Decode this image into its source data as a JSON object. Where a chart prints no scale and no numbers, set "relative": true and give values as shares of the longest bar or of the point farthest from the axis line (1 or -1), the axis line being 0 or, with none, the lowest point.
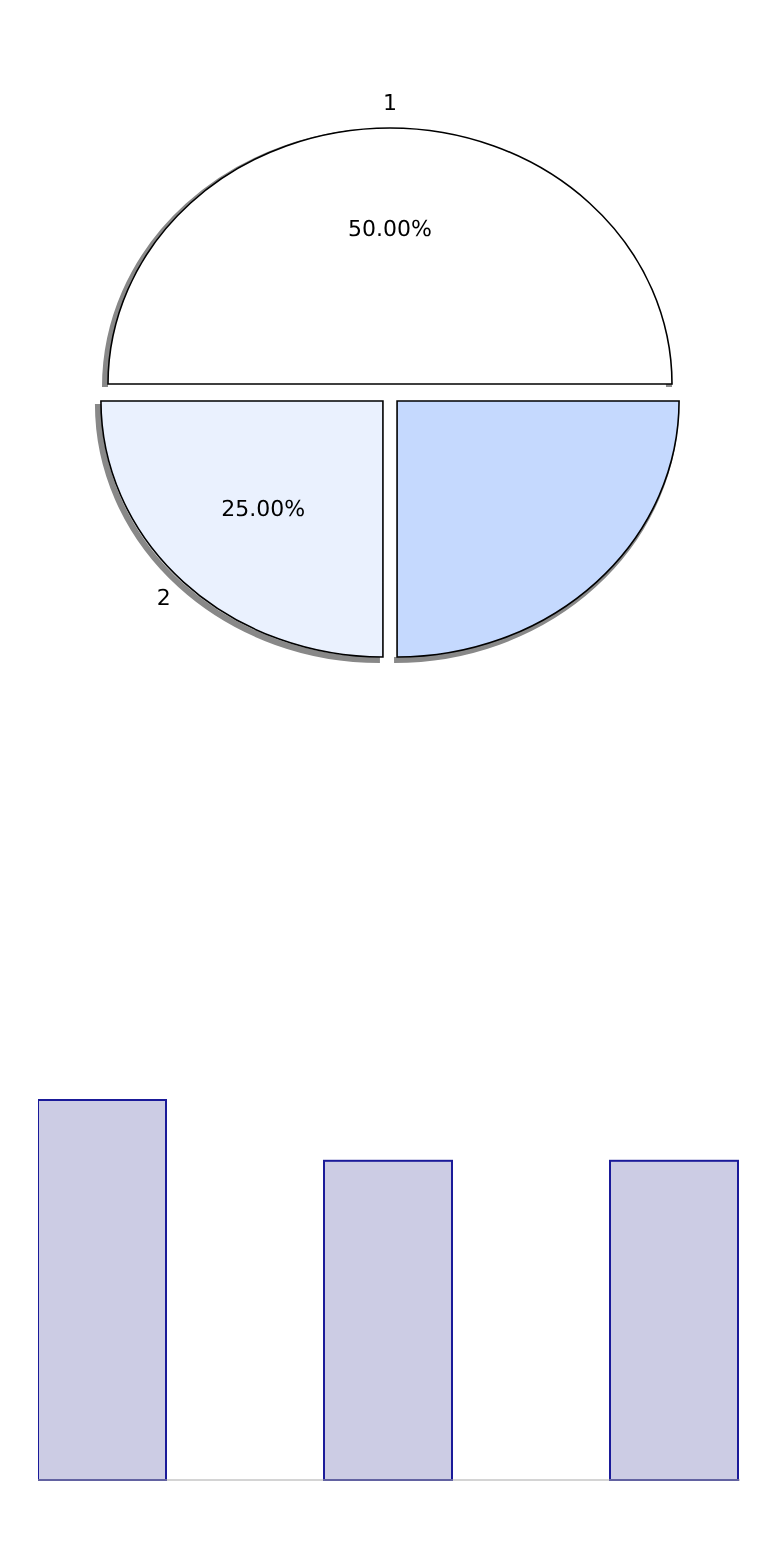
{
  "chart_data": [
    {
      "type": "pie",
      "categories": [
        "1",
        "2",
        null
      ],
      "values": [
        50,
        25,
        25
      ],
      "colors": [
        "#ffffff",
        "#eaf1fe",
        "#c5d9fe"
      ],
      "value_labels": [
        "50.00%",
        "25.00%",
        null
      ]
    },
    {
      "type": "bar",
      "categories": [
        null,
        null,
        null
      ],
      "values": [
        1,
        0.84,
        0.84
      ],
      "color": "#cccce4",
      "relative": true
    }
  ]
}
